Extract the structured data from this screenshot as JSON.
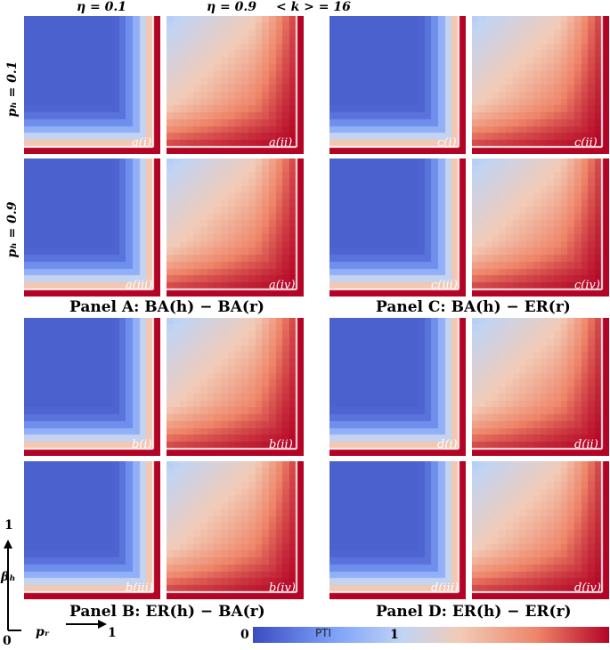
{
  "header": {
    "eta_low": "η = 0.1",
    "eta_high": "η = 0.9",
    "avg_degree": "< k > = 16"
  },
  "row_labels": {
    "ph_low": "pₕ = 0.1",
    "ph_high": "pₕ = 0.9"
  },
  "panels": [
    {
      "title": "Panel A: BA(h) − BA(r)",
      "subplots": [
        "a(i)",
        "a(ii)",
        "a(iii)",
        "a(iv)"
      ]
    },
    {
      "title": "Panel B: ER(h) − BA(r)",
      "subplots": [
        "b(i)",
        "b(ii)",
        "b(iii)",
        "b(iv)"
      ]
    },
    {
      "title": "Panel C: BA(h) − ER(r)",
      "subplots": [
        "c(i)",
        "c(ii)",
        "c(iii)",
        "c(iv)"
      ]
    },
    {
      "title": "Panel D: ER(h) − ER(r)",
      "subplots": [
        "d(i)",
        "d(ii)",
        "d(iii)",
        "d(iv)"
      ]
    }
  ],
  "axes": {
    "y_label": "βₕ",
    "y_max": "1",
    "x_label": "pᵣ",
    "x_max": "1",
    "origin": "0"
  },
  "colorbar": {
    "title": "PTI",
    "min_label": "0",
    "max_label": "1",
    "colors": [
      "#3b4cc0",
      "#7b9ff9",
      "#c0d4f5",
      "#f2cbb7",
      "#ee8468",
      "#b40426"
    ]
  },
  "chart_data": {
    "type": "heatmap",
    "grid_size": 20,
    "x_axis": "pr",
    "y_axis": "beta_h",
    "xlim": [
      0,
      1
    ],
    "ylim": [
      0,
      1
    ],
    "value_range": [
      0,
      1
    ],
    "value_label": "PTI",
    "shapes": {
      "eta_0.1": "low (blue) over most of the domain; rises sharply to 1 near pr -> 1 or beta_h -> 0",
      "eta_0.9": "smooth increase toward high pr and low beta_h; about 0.35 at top-left, about 1 at bottom-right"
    }
  }
}
